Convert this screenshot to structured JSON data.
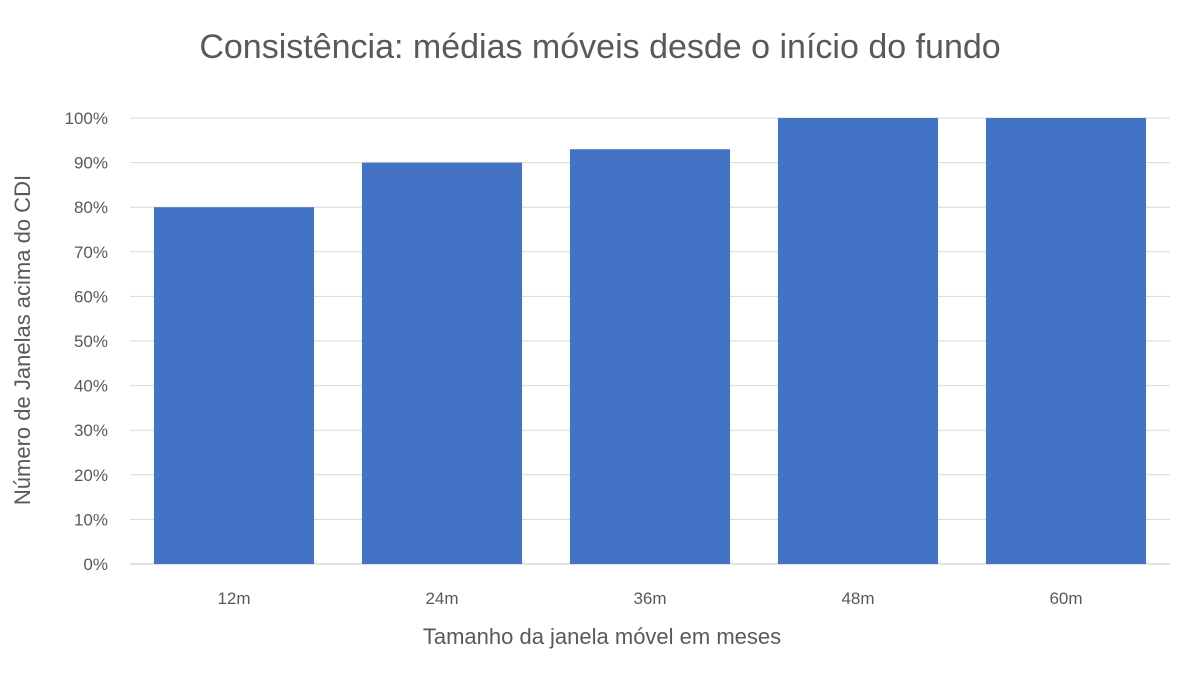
{
  "chart_data": {
    "type": "bar",
    "title": "Consistência: médias móveis desde o início do fundo",
    "xlabel": "Tamanho da janela móvel em meses",
    "ylabel": "Número de Janelas acima do CDI",
    "categories": [
      "12m",
      "24m",
      "36m",
      "48m",
      "60m"
    ],
    "values": [
      0.8,
      0.9,
      0.93,
      1.0,
      1.0
    ],
    "ylim": [
      0,
      1
    ],
    "yticks": [
      {
        "value": 0.0,
        "label": "0%"
      },
      {
        "value": 0.1,
        "label": "10%"
      },
      {
        "value": 0.2,
        "label": "20%"
      },
      {
        "value": 0.3,
        "label": "30%"
      },
      {
        "value": 0.4,
        "label": "40%"
      },
      {
        "value": 0.5,
        "label": "50%"
      },
      {
        "value": 0.6,
        "label": "60%"
      },
      {
        "value": 0.7,
        "label": "70%"
      },
      {
        "value": 0.8,
        "label": "80%"
      },
      {
        "value": 0.9,
        "label": "90%"
      },
      {
        "value": 1.0,
        "label": "100%"
      }
    ],
    "grid": true,
    "bar_color": "#4472C4"
  }
}
